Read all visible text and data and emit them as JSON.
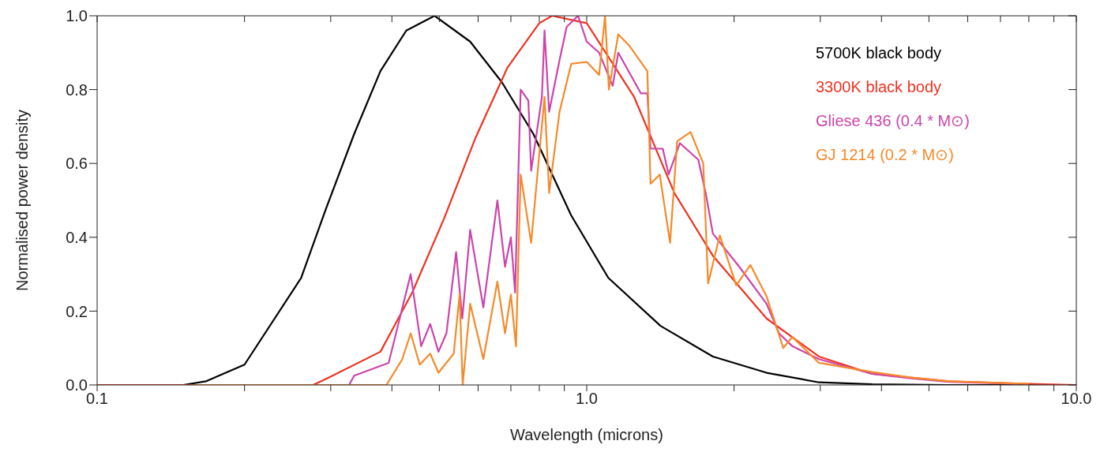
{
  "chart_data": {
    "type": "line",
    "xlabel": "Wavelength (microns)",
    "ylabel": "Normalised power density",
    "log": "x",
    "legend": "top right",
    "xlim": [
      0.1,
      10
    ],
    "xticks": [
      0.1,
      {
        "value": 0.2,
        "label": null
      },
      {
        "value": 0.3,
        "label": null
      },
      {
        "value": 0.4,
        "label": null
      },
      {
        "value": 0.5,
        "label": null
      },
      {
        "value": 0.6,
        "label": null
      },
      {
        "value": 0.7,
        "label": null
      },
      {
        "value": 0.8,
        "label": null
      },
      {
        "value": 0.9,
        "label": null
      },
      {
        "value": 1,
        "label": "1.0"
      },
      {
        "value": 2,
        "label": null
      },
      {
        "value": 3,
        "label": null
      },
      {
        "value": 4,
        "label": null
      },
      {
        "value": 5,
        "label": null
      },
      {
        "value": 6,
        "label": null
      },
      {
        "value": 7,
        "label": null
      },
      {
        "value": 8,
        "label": null
      },
      {
        "value": 9,
        "label": null
      },
      {
        "value": 10,
        "label": "10.0"
      }
    ],
    "ylim": [
      0,
      1
    ],
    "yticks": [
      {
        "value": 0,
        "label": "0.0"
      },
      0.2,
      0.4,
      0.6,
      0.8,
      {
        "value": 1,
        "label": "1.0"
      }
    ],
    "series": [
      {
        "name": "5700K black body",
        "color": "#000000",
        "x": [
          0.1,
          0.15,
          0.167,
          0.2,
          0.261,
          0.292,
          0.335,
          0.379,
          0.428,
          0.489,
          0.578,
          0.671,
          0.778,
          0.929,
          1.107,
          1.415,
          1.81,
          2.33,
          2.98,
          3.83,
          5.5,
          10
        ],
        "values": [
          0,
          0,
          0.01,
          0.055,
          0.29,
          0.47,
          0.68,
          0.85,
          0.96,
          1.0,
          0.93,
          0.82,
          0.68,
          0.46,
          0.29,
          0.16,
          0.077,
          0.033,
          0.007,
          0.002,
          0,
          0
        ]
      },
      {
        "name": "3300K black body",
        "color": "#ee3322",
        "x": [
          0.1,
          0.276,
          0.292,
          0.379,
          0.44,
          0.511,
          0.593,
          0.689,
          0.8,
          0.85,
          1.0,
          1.25,
          1.51,
          1.81,
          2.33,
          2.98,
          3.83,
          5.5,
          8.0,
          10
        ],
        "values": [
          0,
          0,
          0.015,
          0.09,
          0.25,
          0.45,
          0.67,
          0.86,
          0.98,
          1.0,
          0.98,
          0.78,
          0.52,
          0.35,
          0.18,
          0.077,
          0.03,
          0.01,
          0.003,
          0
        ]
      },
      {
        "name": "Gliese 436 (0.4 * M⊙)",
        "color": "#cc44aa",
        "x": [
          0.327,
          0.335,
          0.394,
          0.437,
          0.459,
          0.479,
          0.498,
          0.517,
          0.541,
          0.557,
          0.578,
          0.615,
          0.657,
          0.681,
          0.7,
          0.714,
          0.733,
          0.76,
          0.77,
          0.81,
          0.82,
          0.838,
          0.88,
          0.91,
          0.96,
          1.0,
          1.06,
          1.13,
          1.16,
          1.29,
          1.33,
          1.35,
          1.43,
          1.47,
          1.55,
          1.69,
          1.75,
          1.81,
          2.05,
          2.33,
          2.47,
          2.63,
          2.98,
          3.83,
          4.6,
          5.5,
          7.6
        ],
        "values": [
          0,
          0.025,
          0.06,
          0.3,
          0.105,
          0.165,
          0.09,
          0.14,
          0.36,
          0.18,
          0.42,
          0.21,
          0.5,
          0.32,
          0.4,
          0.25,
          0.8,
          0.77,
          0.58,
          0.78,
          0.96,
          0.74,
          0.88,
          0.97,
          1.0,
          0.93,
          0.9,
          0.81,
          0.9,
          0.79,
          0.79,
          0.64,
          0.64,
          0.57,
          0.655,
          0.61,
          0.52,
          0.41,
          0.32,
          0.22,
          0.14,
          0.105,
          0.07,
          0.03,
          0.018,
          0.008,
          0.003
        ]
      },
      {
        "name": "GJ 1214 (0.2 * M⊙)",
        "color": "#f58a2a",
        "x": [
          0.155,
          0.39,
          0.42,
          0.437,
          0.456,
          0.479,
          0.498,
          0.535,
          0.55,
          0.558,
          0.578,
          0.615,
          0.657,
          0.681,
          0.7,
          0.717,
          0.733,
          0.77,
          0.82,
          0.838,
          0.88,
          0.93,
          1.0,
          1.06,
          1.09,
          1.11,
          1.16,
          1.22,
          1.33,
          1.35,
          1.41,
          1.48,
          1.53,
          1.63,
          1.73,
          1.77,
          1.87,
          2.02,
          2.16,
          2.33,
          2.52,
          2.63,
          2.98,
          3.83,
          4.6,
          5.5,
          8.0
        ],
        "values": [
          0,
          0,
          0.07,
          0.14,
          0.055,
          0.085,
          0.033,
          0.085,
          0.245,
          0,
          0.22,
          0.07,
          0.28,
          0.14,
          0.245,
          0.105,
          0.57,
          0.385,
          0.78,
          0.52,
          0.74,
          0.87,
          0.875,
          0.84,
          1.0,
          0.8,
          0.95,
          0.92,
          0.85,
          0.545,
          0.57,
          0.385,
          0.66,
          0.685,
          0.6,
          0.275,
          0.405,
          0.27,
          0.325,
          0.24,
          0.1,
          0.13,
          0.06,
          0.035,
          0.02,
          0.01,
          0.003
        ]
      }
    ]
  }
}
